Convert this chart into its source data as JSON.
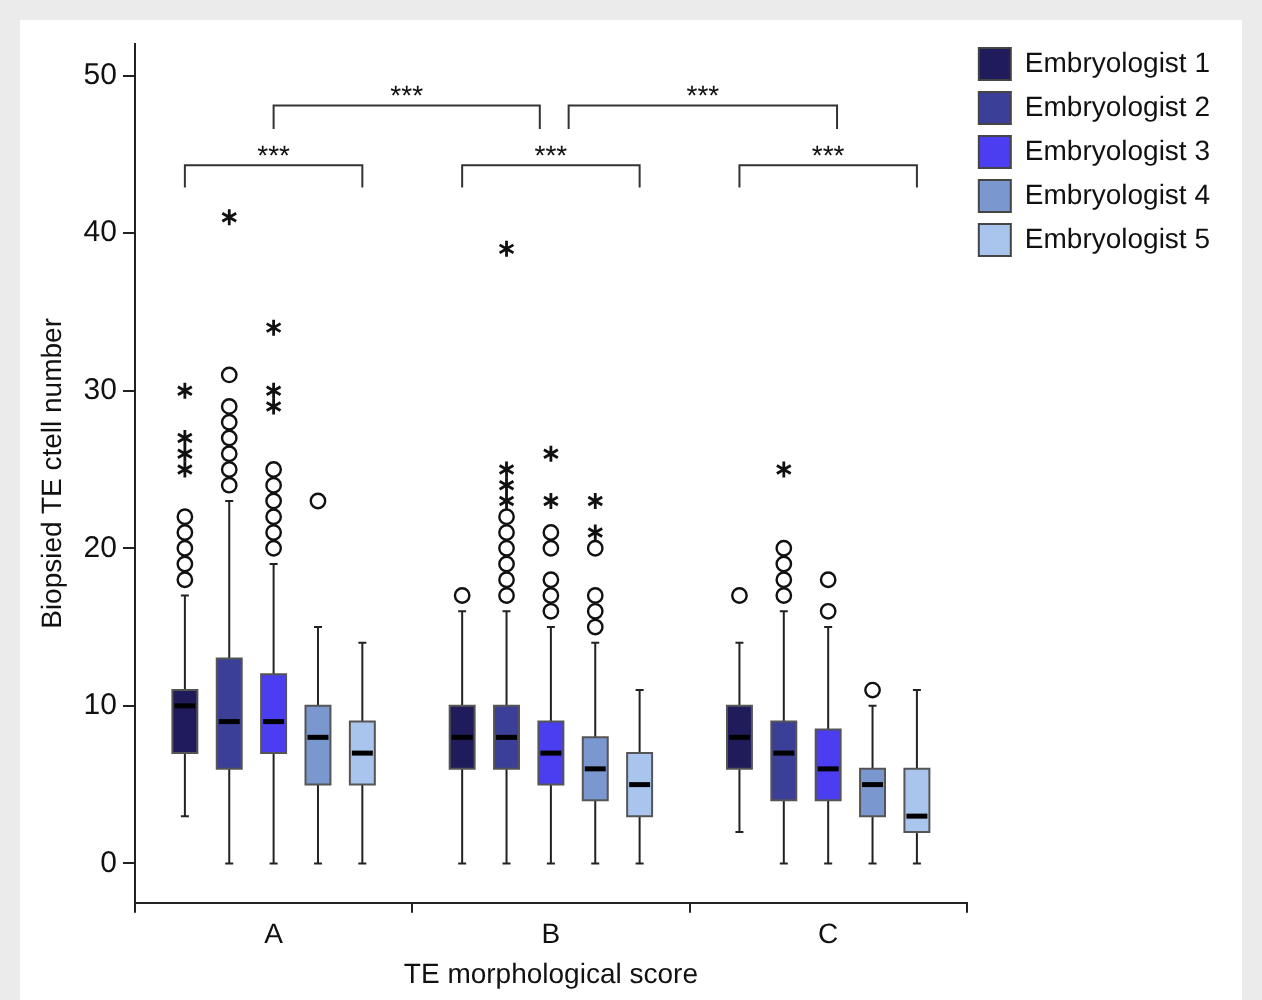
{
  "chart_data": {
    "type": "box",
    "xlabel": "TE morphological score",
    "ylabel": "Biopsied TE ctell number",
    "categories": [
      "A",
      "B",
      "C"
    ],
    "ylim": [
      -2.5,
      52
    ],
    "yticks": [
      0,
      10,
      20,
      30,
      40,
      50
    ],
    "grid": false,
    "legend": "top right",
    "marker": "circle",
    "annotations": [
      "***",
      "***",
      "***",
      "***",
      "***"
    ],
    "series": [
      {
        "name": "Embryologist 1",
        "color": "#201c5c",
        "boxes": [
          {
            "low": 3,
            "q1": 7,
            "median": 10,
            "q3": 11,
            "high": 17,
            "outliers": [
              18,
              19,
              20,
              21,
              22,
              25,
              26,
              27,
              30
            ]
          },
          {
            "low": 0,
            "q1": 6,
            "median": 8,
            "q3": 10,
            "high": 16,
            "outliers": [
              17
            ]
          },
          {
            "low": 2,
            "q1": 6,
            "median": 8,
            "q3": 10,
            "high": 14,
            "outliers": [
              17
            ]
          }
        ]
      },
      {
        "name": "Embryologist 2",
        "color": "#3b3f98",
        "boxes": [
          {
            "low": 0,
            "q1": 6,
            "median": 9,
            "q3": 13,
            "high": 23,
            "outliers": [
              24,
              25,
              26,
              27,
              28,
              29,
              31,
              41
            ]
          },
          {
            "low": 0,
            "q1": 6,
            "median": 8,
            "q3": 10,
            "high": 16,
            "outliers": [
              17,
              18,
              19,
              20,
              21,
              22,
              23,
              24,
              25,
              39
            ]
          },
          {
            "low": 0,
            "q1": 4,
            "median": 7,
            "q3": 9,
            "high": 16,
            "outliers": [
              17,
              18,
              19,
              20,
              25
            ]
          }
        ]
      },
      {
        "name": "Embryologist 3",
        "color": "#4b3ef0",
        "boxes": [
          {
            "low": 0,
            "q1": 7,
            "median": 9,
            "q3": 12,
            "high": 19,
            "outliers": [
              20,
              21,
              22,
              23,
              24,
              25,
              29,
              30,
              34
            ]
          },
          {
            "low": 0,
            "q1": 5,
            "median": 7,
            "q3": 9,
            "high": 15,
            "outliers": [
              16,
              17,
              18,
              20,
              21,
              23,
              26
            ]
          },
          {
            "low": 0,
            "q1": 4,
            "median": 6,
            "q3": 8.5,
            "high": 15,
            "outliers": [
              16,
              18
            ]
          }
        ]
      },
      {
        "name": "Embryologist 4",
        "color": "#7b97cf",
        "boxes": [
          {
            "low": 0,
            "q1": 5,
            "median": 8,
            "q3": 10,
            "high": 15,
            "outliers": [
              23
            ]
          },
          {
            "low": 0,
            "q1": 4,
            "median": 6,
            "q3": 8,
            "high": 14,
            "outliers": [
              15,
              16,
              17,
              20,
              21,
              23
            ]
          },
          {
            "low": 0,
            "q1": 3,
            "median": 5,
            "q3": 6,
            "high": 10,
            "outliers": [
              11
            ]
          }
        ]
      },
      {
        "name": "Embryologist 5",
        "color": "#a9c5ee",
        "boxes": [
          {
            "low": 0,
            "q1": 5,
            "median": 7,
            "q3": 9,
            "high": 14
          },
          {
            "low": 0,
            "q1": 3,
            "median": 5,
            "q3": 7,
            "high": 11
          },
          {
            "low": 0,
            "q1": 2,
            "median": 3,
            "q3": 6,
            "high": 11
          }
        ]
      }
    ]
  }
}
